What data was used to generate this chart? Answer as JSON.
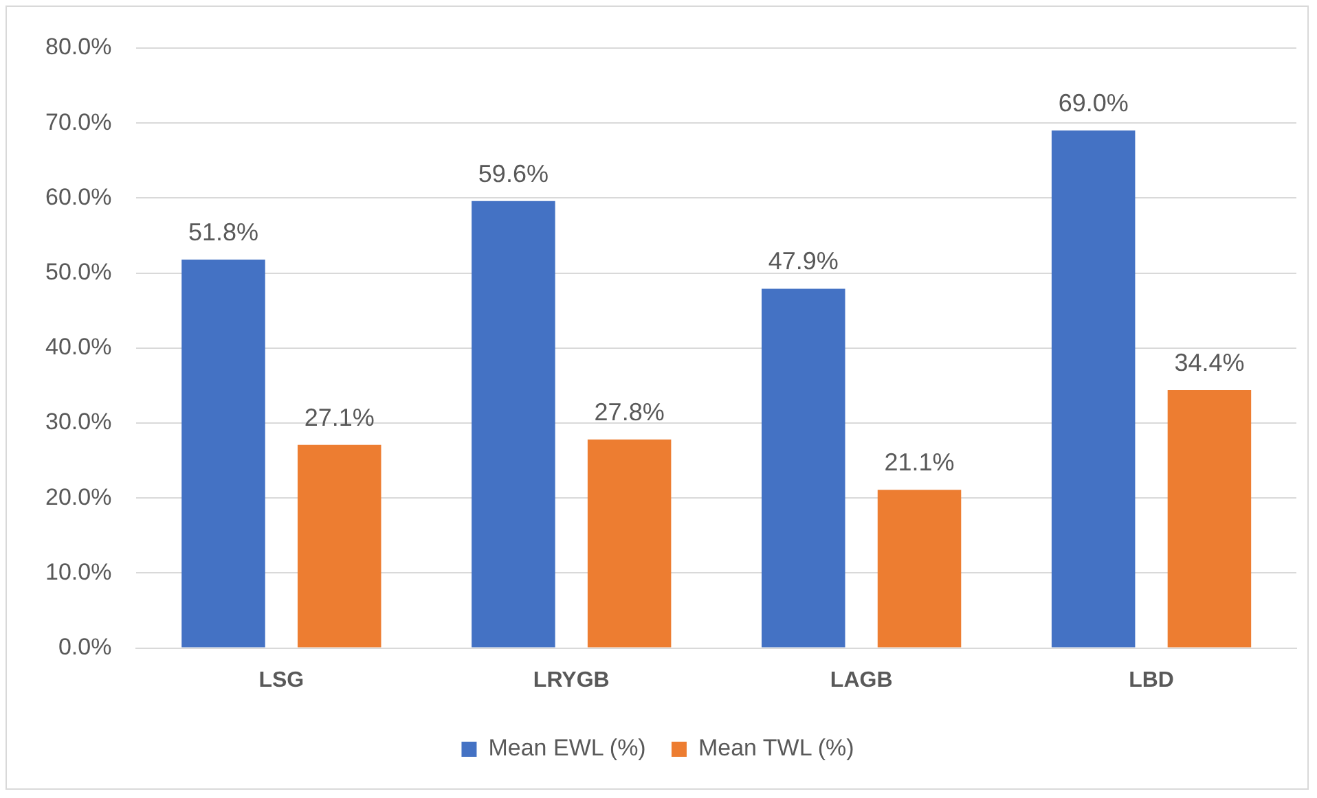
{
  "chart_data": {
    "type": "bar",
    "categories": [
      "LSG",
      "LRYGB",
      "LAGB",
      "LBD"
    ],
    "series": [
      {
        "name": "Mean EWL (%)",
        "color": "#4472c4",
        "values": [
          51.8,
          59.6,
          47.9,
          69.0
        ],
        "value_labels": [
          "51.8%",
          "59.6%",
          "47.9%",
          "69.0%"
        ]
      },
      {
        "name": "Mean TWL (%)",
        "color": "#ed7d31",
        "values": [
          27.1,
          27.8,
          21.1,
          34.4
        ],
        "value_labels": [
          "27.1%",
          "27.8%",
          "21.1%",
          "34.4%"
        ]
      }
    ],
    "ylim": [
      0,
      80
    ],
    "yticks": [
      {
        "value": 0,
        "label": "0.0%"
      },
      {
        "value": 10,
        "label": "10.0%"
      },
      {
        "value": 20,
        "label": "20.0%"
      },
      {
        "value": 30,
        "label": "30.0%"
      },
      {
        "value": 40,
        "label": "40.0%"
      },
      {
        "value": 50,
        "label": "50.0%"
      },
      {
        "value": 60,
        "label": "60.0%"
      },
      {
        "value": 70,
        "label": "70.0%"
      },
      {
        "value": 80,
        "label": "80.0%"
      }
    ],
    "grid": "y",
    "legend": "bottom"
  }
}
